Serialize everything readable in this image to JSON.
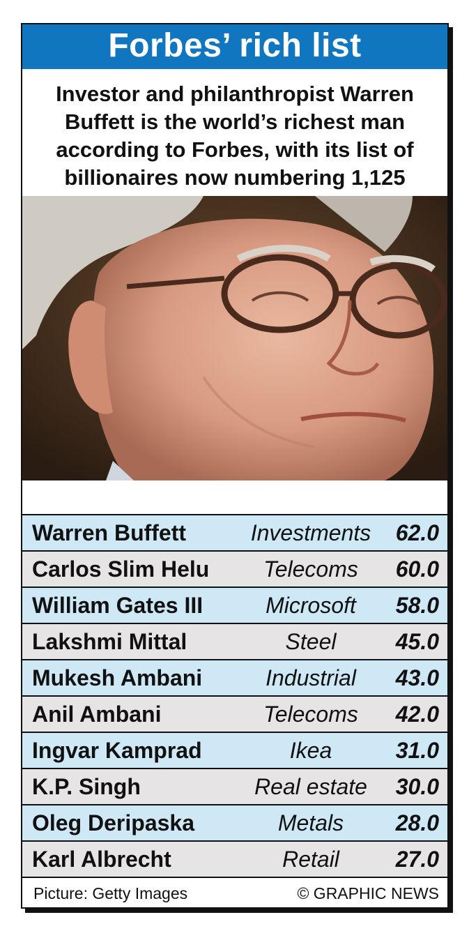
{
  "header": {
    "title": "Forbes’ rich list",
    "subtitle_lines": [
      "Investor and philanthropist Warren",
      "Buffett is the world’s richest man",
      "according to Forbes, with its list of",
      "billionaires now numbering 1,125"
    ]
  },
  "colors": {
    "title_bar": "#1176c0",
    "row_blue": "#cfe8f6",
    "row_grey": "#e6e4e4"
  },
  "photo": {
    "icon": "portrait-photo"
  },
  "rows": [
    {
      "name": "Warren Buffett",
      "sector": "Investments",
      "value": "62.0"
    },
    {
      "name": "Carlos Slim Helu",
      "sector": "Telecoms",
      "value": "60.0"
    },
    {
      "name": "William Gates III",
      "sector": "Microsoft",
      "value": "58.0"
    },
    {
      "name": "Lakshmi Mittal",
      "sector": "Steel",
      "value": "45.0"
    },
    {
      "name": "Mukesh Ambani",
      "sector": "Industrial",
      "value": "43.0"
    },
    {
      "name": "Anil Ambani",
      "sector": "Telecoms",
      "value": "42.0"
    },
    {
      "name": "Ingvar Kamprad",
      "sector": "Ikea",
      "value": "31.0"
    },
    {
      "name": "K.P. Singh",
      "sector": "Real estate",
      "value": "30.0"
    },
    {
      "name": "Oleg Deripaska",
      "sector": "Metals",
      "value": "28.0"
    },
    {
      "name": "Karl Albrecht",
      "sector": "Retail",
      "value": "27.0"
    }
  ],
  "footer": {
    "credit": "Picture: Getty Images",
    "copyright": "© GRAPHIC NEWS"
  }
}
